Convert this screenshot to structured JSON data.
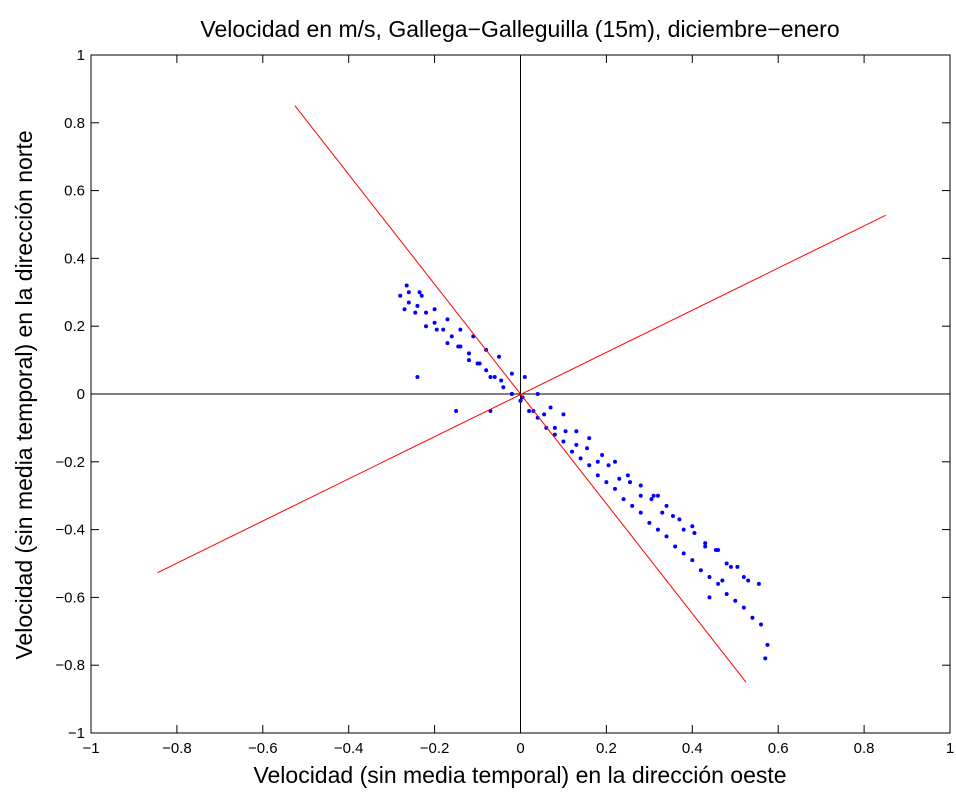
{
  "chart_data": {
    "type": "scatter",
    "title": "Velocidad en m/s, Gallega−Galleguilla (15m), diciembre−enero",
    "xlabel": "Velocidad (sin media temporal) en la dirección oeste",
    "ylabel": "Velocidad (sin media temporal) en la dirección norte",
    "xlim": [
      -1,
      1
    ],
    "ylim": [
      -1,
      1
    ],
    "x_ticks": [
      -1,
      -0.8,
      -0.6,
      -0.4,
      -0.2,
      0,
      0.2,
      0.4,
      0.6,
      0.8,
      1
    ],
    "y_ticks": [
      -1,
      -0.8,
      -0.6,
      -0.4,
      -0.2,
      0,
      0.2,
      0.4,
      0.6,
      0.8,
      1
    ],
    "x_tick_labels": [
      "−1",
      "−0.8",
      "−0.6",
      "−0.4",
      "−0.2",
      "0",
      "0.2",
      "0.4",
      "0.6",
      "0.8",
      "1"
    ],
    "y_tick_labels": [
      "−1",
      "−0.8",
      "−0.6",
      "−0.4",
      "−0.2",
      "0",
      "0.2",
      "0.4",
      "0.6",
      "0.8",
      "1"
    ],
    "grid": false,
    "colors": {
      "points": "#0000ff",
      "lines": "#ff0000",
      "axes": "#000000"
    },
    "reference_lines": [
      {
        "x": [
          -1,
          1
        ],
        "y": [
          0,
          0
        ],
        "color": "#000000"
      },
      {
        "x": [
          0,
          0
        ],
        "y": [
          -1,
          1
        ],
        "color": "#000000"
      }
    ],
    "principal_axes": [
      {
        "x": [
          -0.525,
          0.525
        ],
        "y": [
          0.85,
          -0.85
        ],
        "color": "#ff0000"
      },
      {
        "x": [
          -0.845,
          0.85
        ],
        "y": [
          -0.527,
          0.527
        ],
        "color": "#ff0000"
      }
    ],
    "series": [
      {
        "color": "#0000ff",
        "x": [
          -0.28,
          -0.26,
          -0.24,
          -0.22,
          -0.2,
          -0.18,
          -0.16,
          -0.14,
          -0.12,
          -0.1,
          -0.08,
          -0.06,
          -0.04,
          -0.02,
          0.0,
          0.02,
          0.04,
          0.06,
          0.08,
          0.1,
          0.12,
          0.14,
          0.16,
          0.18,
          0.2,
          0.22,
          0.24,
          0.26,
          0.28,
          0.3,
          0.32,
          0.34,
          0.36,
          0.38,
          0.4,
          0.42,
          0.44,
          0.46,
          0.48,
          0.5,
          0.52,
          0.54,
          0.56,
          0.575,
          -0.27,
          -0.245,
          -0.22,
          -0.195,
          -0.17,
          -0.145,
          -0.12,
          -0.095,
          -0.07,
          -0.045,
          -0.02,
          0.005,
          0.03,
          0.055,
          0.08,
          0.105,
          0.13,
          0.155,
          0.18,
          0.205,
          0.23,
          0.255,
          0.28,
          0.305,
          0.33,
          0.355,
          0.38,
          0.405,
          0.43,
          0.455,
          0.48,
          0.505,
          0.53,
          0.555,
          -0.26,
          -0.23,
          -0.2,
          -0.17,
          -0.14,
          -0.11,
          -0.08,
          -0.05,
          -0.02,
          0.01,
          0.04,
          0.07,
          0.1,
          0.13,
          0.16,
          0.19,
          0.22,
          0.25,
          0.28,
          0.31,
          0.34,
          0.37,
          0.4,
          0.43,
          0.46,
          0.49,
          0.52,
          -0.265,
          -0.235,
          -0.24,
          -0.15,
          -0.07,
          0.32,
          0.47,
          0.57,
          0.44
        ],
        "y": [
          0.29,
          0.27,
          0.26,
          0.24,
          0.21,
          0.19,
          0.17,
          0.14,
          0.12,
          0.09,
          0.07,
          0.05,
          0.02,
          0.0,
          -0.02,
          -0.05,
          -0.07,
          -0.1,
          -0.12,
          -0.14,
          -0.17,
          -0.19,
          -0.21,
          -0.24,
          -0.26,
          -0.28,
          -0.31,
          -0.33,
          -0.35,
          -0.38,
          -0.4,
          -0.42,
          -0.45,
          -0.47,
          -0.49,
          -0.52,
          -0.54,
          -0.56,
          -0.59,
          -0.61,
          -0.63,
          -0.66,
          -0.68,
          -0.74,
          0.25,
          0.24,
          0.2,
          0.19,
          0.15,
          0.14,
          0.1,
          0.09,
          0.05,
          0.04,
          0.0,
          -0.01,
          -0.05,
          -0.06,
          -0.1,
          -0.11,
          -0.15,
          -0.16,
          -0.2,
          -0.21,
          -0.25,
          -0.26,
          -0.3,
          -0.31,
          -0.35,
          -0.36,
          -0.4,
          -0.41,
          -0.45,
          -0.46,
          -0.5,
          -0.51,
          -0.55,
          -0.56,
          0.3,
          0.29,
          0.25,
          0.22,
          0.19,
          0.17,
          0.13,
          0.11,
          0.06,
          0.05,
          0.0,
          -0.04,
          -0.06,
          -0.11,
          -0.13,
          -0.18,
          -0.2,
          -0.24,
          -0.27,
          -0.3,
          -0.33,
          -0.37,
          -0.39,
          -0.44,
          -0.46,
          -0.51,
          -0.54,
          0.32,
          0.3,
          0.05,
          -0.05,
          -0.05,
          -0.3,
          -0.55,
          -0.78,
          -0.6
        ]
      }
    ]
  }
}
